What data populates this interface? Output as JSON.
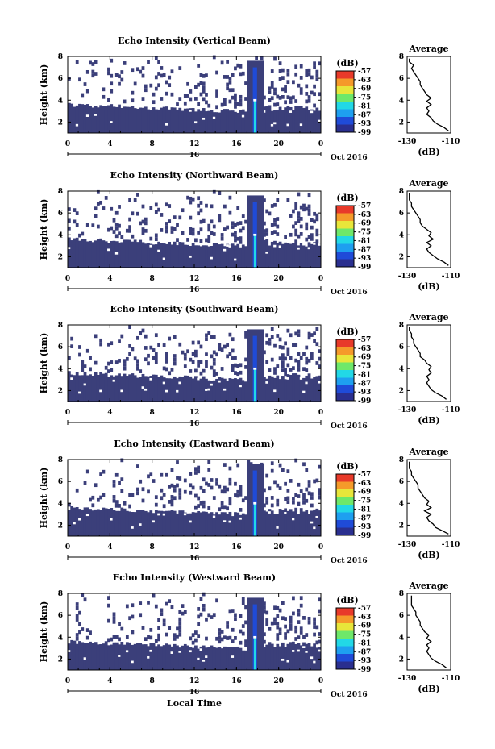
{
  "chart_data": [
    {
      "type": "heatmap",
      "title": "Echo Intensity (Vertical Beam)",
      "ylabel": "Height (km)",
      "xlim": [
        0,
        24
      ],
      "ylim": [
        1,
        8
      ],
      "x_ticks": [
        "0",
        "4",
        "8",
        "12",
        "16",
        "20",
        "0"
      ],
      "y_ticks": [
        "2",
        "4",
        "6",
        "8"
      ],
      "date_label": "16",
      "month_label": "Oct 2016",
      "colorbar": {
        "unit": "(dB)",
        "ticks": [
          "-57",
          "-63",
          "-69",
          "-75",
          "-81",
          "-87",
          "-93",
          "-99"
        ]
      },
      "profile": {
        "title": "Average",
        "xlabel": "(dB)",
        "xlim": [
          -130,
          -110
        ],
        "x_ticks": [
          "-130",
          "-110"
        ],
        "ylim": [
          1,
          8
        ],
        "heights": [
          1.2,
          1.5,
          1.8,
          2.1,
          2.4,
          2.7,
          3.0,
          3.3,
          3.6,
          3.9,
          4.2,
          4.5,
          4.8,
          5.1,
          5.4,
          5.7,
          6.0,
          6.3,
          6.6,
          6.9,
          7.2,
          7.5,
          7.8
        ],
        "values": [
          -111,
          -113,
          -116,
          -118,
          -119,
          -121,
          -120,
          -121,
          -119,
          -121,
          -119,
          -121,
          -122,
          -123,
          -124,
          -124,
          -125,
          -126,
          -127,
          -128,
          -127,
          -129,
          -129
        ]
      }
    },
    {
      "type": "heatmap",
      "title": "Echo Intensity (Northward Beam)",
      "ylabel": "Height (km)",
      "xlim": [
        0,
        24
      ],
      "ylim": [
        1,
        8
      ],
      "x_ticks": [
        "0",
        "4",
        "8",
        "12",
        "16",
        "20",
        "0"
      ],
      "y_ticks": [
        "2",
        "4",
        "6",
        "8"
      ],
      "date_label": "16",
      "month_label": "Oct 2016",
      "colorbar": {
        "unit": "(dB)",
        "ticks": [
          "-57",
          "-63",
          "-69",
          "-75",
          "-81",
          "-87",
          "-93",
          "-99"
        ]
      },
      "profile": {
        "title": "Average",
        "xlabel": "(dB)",
        "xlim": [
          -130,
          -110
        ],
        "x_ticks": [
          "-130",
          "-110"
        ],
        "ylim": [
          1,
          8
        ],
        "heights": [
          1.2,
          1.5,
          1.8,
          2.1,
          2.4,
          2.7,
          3.0,
          3.3,
          3.6,
          3.9,
          4.2,
          4.5,
          4.8,
          5.1,
          5.4,
          5.7,
          6.0,
          6.3,
          6.6,
          6.9,
          7.2,
          7.5,
          7.8
        ],
        "values": [
          -111,
          -113,
          -116,
          -118,
          -120,
          -121,
          -119,
          -121,
          -118,
          -120,
          -119,
          -121,
          -123,
          -124,
          -124,
          -125,
          -126,
          -127,
          -128,
          -128,
          -129,
          -129,
          -129
        ]
      }
    },
    {
      "type": "heatmap",
      "title": "Echo Intensity (Southward Beam)",
      "ylabel": "Height (km)",
      "xlim": [
        0,
        24
      ],
      "ylim": [
        1,
        8
      ],
      "x_ticks": [
        "0",
        "4",
        "8",
        "12",
        "16",
        "20",
        "0"
      ],
      "y_ticks": [
        "2",
        "4",
        "6",
        "8"
      ],
      "date_label": "16",
      "month_label": "Oct 2016",
      "colorbar": {
        "unit": "(dB)",
        "ticks": [
          "-57",
          "-63",
          "-69",
          "-75",
          "-81",
          "-87",
          "-93",
          "-99"
        ]
      },
      "profile": {
        "title": "Average",
        "xlabel": "(dB)",
        "xlim": [
          -130,
          -110
        ],
        "x_ticks": [
          "-130",
          "-110"
        ],
        "ylim": [
          1,
          8
        ],
        "heights": [
          1.2,
          1.5,
          1.8,
          2.1,
          2.4,
          2.7,
          3.0,
          3.3,
          3.6,
          3.9,
          4.2,
          4.5,
          4.8,
          5.1,
          5.4,
          5.7,
          6.0,
          6.3,
          6.6,
          6.9,
          7.2,
          7.5,
          7.8
        ],
        "values": [
          -112,
          -114,
          -117,
          -119,
          -120,
          -121,
          -120,
          -121,
          -119,
          -120,
          -119,
          -121,
          -122,
          -124,
          -124,
          -125,
          -126,
          -127,
          -127,
          -128,
          -128,
          -129,
          -129
        ]
      }
    },
    {
      "type": "heatmap",
      "title": "Echo Intensity (Eastward Beam)",
      "ylabel": "Height (km)",
      "xlim": [
        0,
        24
      ],
      "ylim": [
        1,
        8
      ],
      "x_ticks": [
        "0",
        "4",
        "8",
        "12",
        "16",
        "20",
        "0"
      ],
      "y_ticks": [
        "2",
        "4",
        "6",
        "8"
      ],
      "date_label": "16",
      "month_label": "Oct 2016",
      "colorbar": {
        "unit": "(dB)",
        "ticks": [
          "-57",
          "-63",
          "-69",
          "-75",
          "-81",
          "-87",
          "-93",
          "-99"
        ]
      },
      "profile": {
        "title": "Average",
        "xlabel": "(dB)",
        "xlim": [
          -130,
          -110
        ],
        "x_ticks": [
          "-130",
          "-110"
        ],
        "ylim": [
          1,
          8
        ],
        "heights": [
          1.2,
          1.5,
          1.8,
          2.1,
          2.4,
          2.7,
          3.0,
          3.3,
          3.6,
          3.9,
          4.2,
          4.5,
          4.8,
          5.1,
          5.4,
          5.7,
          6.0,
          6.3,
          6.6,
          6.9,
          7.2,
          7.5,
          7.8
        ],
        "values": [
          -111,
          -114,
          -117,
          -118,
          -120,
          -121,
          -119,
          -122,
          -119,
          -121,
          -120,
          -122,
          -123,
          -124,
          -125,
          -125,
          -126,
          -127,
          -128,
          -128,
          -129,
          -129,
          -129
        ]
      }
    },
    {
      "type": "heatmap",
      "title": "Echo Intensity (Westward Beam)",
      "ylabel": "Height (km)",
      "xlabel": "Local Time",
      "xlim": [
        0,
        24
      ],
      "ylim": [
        1,
        8
      ],
      "x_ticks": [
        "0",
        "4",
        "8",
        "12",
        "16",
        "20",
        "0"
      ],
      "y_ticks": [
        "2",
        "4",
        "6",
        "8"
      ],
      "date_label": "16",
      "month_label": "Oct 2016",
      "colorbar": {
        "unit": "(dB)",
        "ticks": [
          "-57",
          "-63",
          "-69",
          "-75",
          "-81",
          "-87",
          "-93",
          "-99"
        ]
      },
      "profile": {
        "title": "Average",
        "xlabel": "(dB)",
        "xlim": [
          -130,
          -110
        ],
        "x_ticks": [
          "-130",
          "-110"
        ],
        "ylim": [
          1,
          8
        ],
        "heights": [
          1.2,
          1.5,
          1.8,
          2.1,
          2.4,
          2.7,
          3.0,
          3.3,
          3.6,
          3.9,
          4.2,
          4.5,
          4.8,
          5.1,
          5.4,
          5.7,
          6.0,
          6.3,
          6.6,
          6.9,
          7.2,
          7.5,
          7.8
        ],
        "values": [
          -112,
          -114,
          -117,
          -119,
          -120,
          -121,
          -120,
          -121,
          -119,
          -121,
          -120,
          -122,
          -123,
          -124,
          -124,
          -125,
          -126,
          -126,
          -127,
          -128,
          -128,
          -128,
          -128
        ]
      }
    }
  ],
  "colors": {
    "background_echo": "#3b3f7a",
    "colormap": [
      "#ffffff",
      "#2a2f8f",
      "#1f4bd8",
      "#1e9ff0",
      "#22d8e6",
      "#6ee86a",
      "#e8e63a",
      "#f59a2a",
      "#e83a2a"
    ]
  }
}
